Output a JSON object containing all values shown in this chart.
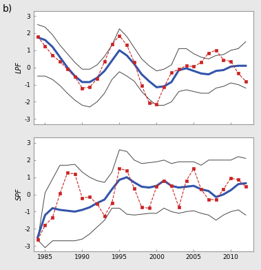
{
  "years": [
    1984,
    1985,
    1986,
    1987,
    1988,
    1989,
    1990,
    1991,
    1992,
    1993,
    1994,
    1995,
    1996,
    1997,
    1998,
    1999,
    2000,
    2001,
    2002,
    2003,
    2004,
    2005,
    2006,
    2007,
    2008,
    2009,
    2010,
    2011,
    2012
  ],
  "lpf_blue": [
    1.75,
    1.6,
    1.2,
    0.6,
    0.0,
    -0.5,
    -0.85,
    -0.85,
    -0.6,
    -0.2,
    0.4,
    1.0,
    0.7,
    0.2,
    -0.4,
    -0.8,
    -1.15,
    -1.1,
    -0.85,
    -0.15,
    -0.05,
    -0.2,
    -0.35,
    -0.4,
    -0.2,
    -0.15,
    0.05,
    0.1,
    0.1
  ],
  "lpf_red": [
    1.8,
    1.25,
    0.7,
    0.35,
    -0.1,
    -0.55,
    -1.2,
    -1.15,
    -0.65,
    0.35,
    1.35,
    1.85,
    1.3,
    0.3,
    -1.05,
    -2.05,
    -2.15,
    -1.15,
    -0.3,
    -0.1,
    0.1,
    0.05,
    0.3,
    0.85,
    1.0,
    0.45,
    0.35,
    -0.35,
    -0.8
  ],
  "lpf_upper": [
    2.5,
    2.35,
    1.9,
    1.3,
    0.8,
    0.3,
    -0.1,
    -0.1,
    0.15,
    0.65,
    1.3,
    2.25,
    1.8,
    1.15,
    0.5,
    0.1,
    -0.2,
    -0.1,
    0.15,
    1.1,
    1.1,
    0.8,
    0.6,
    0.5,
    0.7,
    0.75,
    1.0,
    1.1,
    1.5
  ],
  "lpf_lower": [
    -0.5,
    -0.5,
    -0.7,
    -1.05,
    -1.5,
    -1.9,
    -2.2,
    -2.3,
    -2.0,
    -1.5,
    -0.7,
    -0.25,
    -0.5,
    -0.8,
    -1.4,
    -1.85,
    -2.2,
    -2.2,
    -2.0,
    -1.4,
    -1.3,
    -1.4,
    -1.5,
    -1.5,
    -1.2,
    -1.1,
    -0.9,
    -1.0,
    -1.2
  ],
  "spf_blue": [
    -2.5,
    -1.2,
    -0.8,
    -0.9,
    -0.95,
    -1.0,
    -0.9,
    -0.75,
    -0.5,
    -0.3,
    0.3,
    0.85,
    1.0,
    0.7,
    0.45,
    0.4,
    0.5,
    0.8,
    0.5,
    0.4,
    0.45,
    0.5,
    0.3,
    0.2,
    -0.15,
    0.0,
    0.25,
    0.6,
    0.65
  ],
  "spf_red": [
    -2.65,
    -1.8,
    -1.35,
    0.05,
    1.25,
    1.2,
    -0.2,
    -0.15,
    -0.55,
    -1.25,
    -0.5,
    1.5,
    1.4,
    0.35,
    -0.75,
    -0.8,
    0.45,
    0.8,
    0.5,
    -0.75,
    0.8,
    1.5,
    0.3,
    -0.3,
    -0.3,
    0.3,
    0.95,
    0.85,
    0.45
  ],
  "spf_upper": [
    -2.65,
    0.1,
    0.9,
    1.7,
    1.7,
    1.75,
    1.3,
    1.0,
    0.8,
    0.7,
    1.3,
    2.6,
    2.5,
    2.0,
    1.8,
    1.85,
    1.9,
    2.0,
    1.8,
    1.9,
    1.9,
    1.9,
    1.7,
    2.0,
    2.0,
    2.0,
    2.0,
    2.2,
    2.1
  ],
  "spf_lower": [
    -2.65,
    -3.1,
    -2.7,
    -2.7,
    -2.7,
    -2.7,
    -2.6,
    -2.3,
    -1.9,
    -1.5,
    -0.8,
    -0.8,
    -1.15,
    -1.2,
    -1.15,
    -1.1,
    -1.1,
    -0.8,
    -1.0,
    -1.1,
    -1.0,
    -0.95,
    -1.1,
    -1.2,
    -1.5,
    -1.2,
    -1.0,
    -0.9,
    -1.2
  ],
  "yticks": [
    -3,
    -2,
    -1,
    0,
    1,
    2,
    3
  ],
  "xticks": [
    1985,
    1990,
    1995,
    2000,
    2005,
    2010
  ],
  "ylim": [
    -3.3,
    3.3
  ],
  "xlim": [
    1983.5,
    2013.0
  ],
  "blue_color": "#3355aa",
  "red_color": "#cc2222",
  "gray_color": "#444444",
  "bg_color": "#e8e8e8",
  "panel_bg": "#ffffff",
  "spine_color": "#999999",
  "label_fontsize": 7,
  "ylabel_fontsize": 7,
  "tick_fontsize": 6.5,
  "b_label_fontsize": 10
}
